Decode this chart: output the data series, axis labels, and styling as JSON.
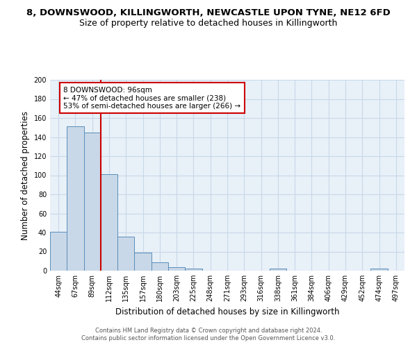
{
  "title_line1": "8, DOWNSWOOD, KILLINGWORTH, NEWCASTLE UPON TYNE, NE12 6FD",
  "title_line2": "Size of property relative to detached houses in Killingworth",
  "xlabel": "Distribution of detached houses by size in Killingworth",
  "ylabel": "Number of detached properties",
  "categories": [
    "44sqm",
    "67sqm",
    "89sqm",
    "112sqm",
    "135sqm",
    "157sqm",
    "180sqm",
    "203sqm",
    "225sqm",
    "248sqm",
    "271sqm",
    "293sqm",
    "316sqm",
    "338sqm",
    "361sqm",
    "384sqm",
    "406sqm",
    "429sqm",
    "452sqm",
    "474sqm",
    "497sqm"
  ],
  "values": [
    41,
    151,
    145,
    101,
    36,
    19,
    9,
    4,
    2,
    0,
    0,
    0,
    0,
    2,
    0,
    0,
    0,
    0,
    0,
    2,
    0
  ],
  "bar_color": "#c8d8e8",
  "bar_edge_color": "#5b8db8",
  "vline_x": 2.5,
  "vline_color": "#cc0000",
  "annotation_text": "8 DOWNSWOOD: 96sqm\n← 47% of detached houses are smaller (238)\n53% of semi-detached houses are larger (266) →",
  "annotation_box_color": "#ffffff",
  "annotation_box_edge": "#cc0000",
  "ylim": [
    0,
    200
  ],
  "yticks": [
    0,
    20,
    40,
    60,
    80,
    100,
    120,
    140,
    160,
    180,
    200
  ],
  "grid_color": "#c8d8e8",
  "bg_color": "#e8f0f8",
  "footer_line1": "Contains HM Land Registry data © Crown copyright and database right 2024.",
  "footer_line2": "Contains public sector information licensed under the Open Government Licence v3.0.",
  "title_fontsize": 9.5,
  "subtitle_fontsize": 9,
  "tick_fontsize": 7,
  "ylabel_fontsize": 8.5,
  "xlabel_fontsize": 8.5,
  "annotation_fontsize": 7.5,
  "footer_fontsize": 6
}
